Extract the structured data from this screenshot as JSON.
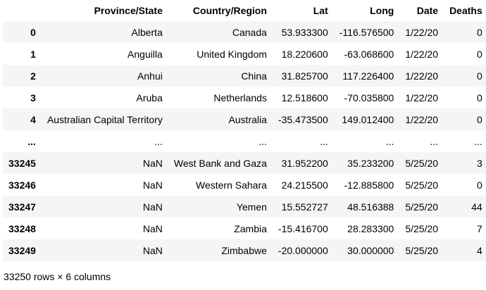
{
  "table": {
    "columns": [
      "Province/State",
      "Country/Region",
      "Lat",
      "Long",
      "Date",
      "Deaths"
    ],
    "rows": [
      {
        "index": "0",
        "cells": [
          "Alberta",
          "Canada",
          "53.933300",
          "-116.576500",
          "1/22/20",
          "0"
        ]
      },
      {
        "index": "1",
        "cells": [
          "Anguilla",
          "United Kingdom",
          "18.220600",
          "-63.068600",
          "1/22/20",
          "0"
        ]
      },
      {
        "index": "2",
        "cells": [
          "Anhui",
          "China",
          "31.825700",
          "117.226400",
          "1/22/20",
          "0"
        ]
      },
      {
        "index": "3",
        "cells": [
          "Aruba",
          "Netherlands",
          "12.518600",
          "-70.035800",
          "1/22/20",
          "0"
        ]
      },
      {
        "index": "4",
        "cells": [
          "Australian Capital Territory",
          "Australia",
          "-35.473500",
          "149.012400",
          "1/22/20",
          "0"
        ]
      },
      {
        "index": "...",
        "cells": [
          "...",
          "...",
          "...",
          "...",
          "...",
          "..."
        ]
      },
      {
        "index": "33245",
        "cells": [
          "NaN",
          "West Bank and Gaza",
          "31.952200",
          "35.233200",
          "5/25/20",
          "3"
        ]
      },
      {
        "index": "33246",
        "cells": [
          "NaN",
          "Western Sahara",
          "24.215500",
          "-12.885800",
          "5/25/20",
          "0"
        ]
      },
      {
        "index": "33247",
        "cells": [
          "NaN",
          "Yemen",
          "15.552727",
          "48.516388",
          "5/25/20",
          "44"
        ]
      },
      {
        "index": "33248",
        "cells": [
          "NaN",
          "Zambia",
          "-15.416700",
          "28.283300",
          "5/25/20",
          "7"
        ]
      },
      {
        "index": "33249",
        "cells": [
          "NaN",
          "Zimbabwe",
          "-20.000000",
          "30.000000",
          "5/25/20",
          "4"
        ]
      }
    ]
  },
  "summary": "33250 rows × 6 columns"
}
